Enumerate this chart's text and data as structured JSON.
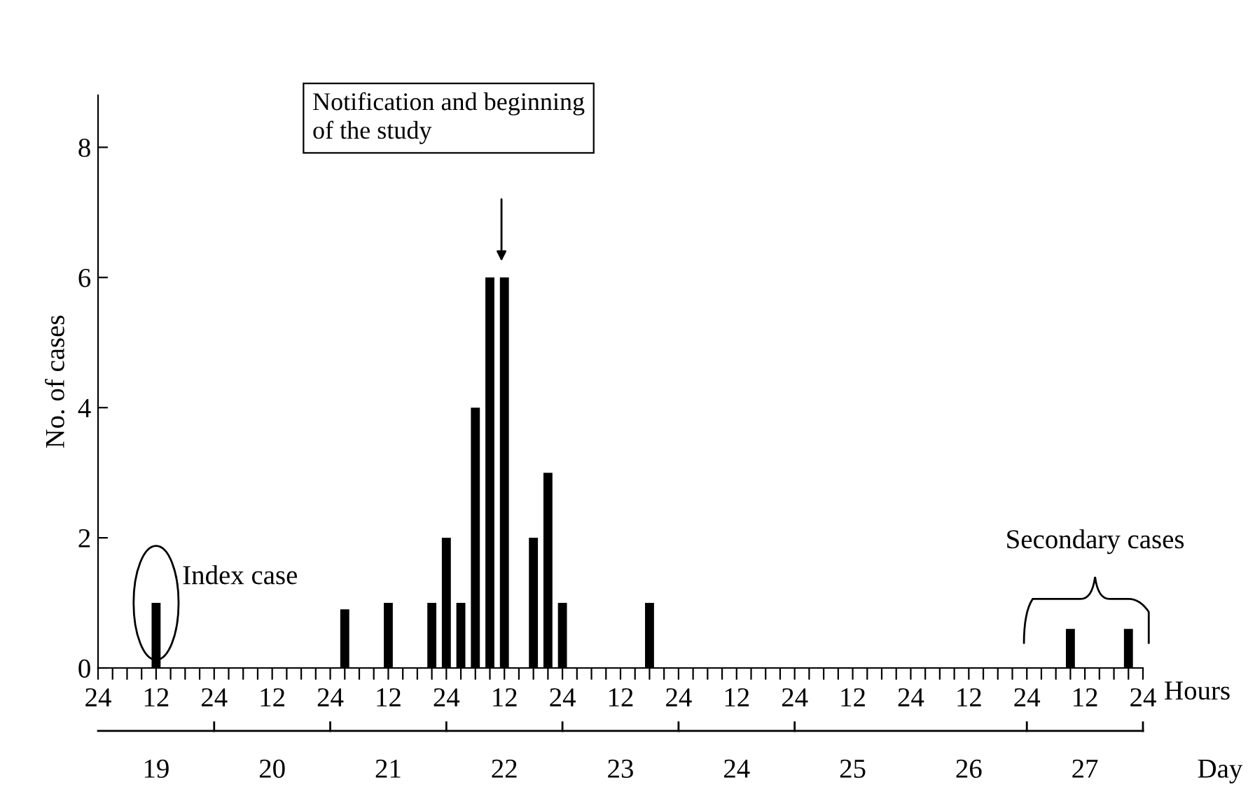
{
  "chart_data": {
    "type": "bar",
    "xlabel": "Hours",
    "ylabel": "No. of cases",
    "categories": [
      "24",
      null,
      null,
      null,
      "12",
      null,
      null,
      null,
      "24",
      null,
      null,
      null,
      "12",
      null,
      null,
      null,
      "24",
      null,
      null,
      null,
      "12",
      null,
      null,
      null,
      "24",
      null,
      null,
      null,
      "12",
      null,
      null,
      null,
      "24",
      null,
      null,
      null,
      "12",
      null,
      null,
      null,
      "24",
      null,
      null,
      null,
      "12",
      null,
      null,
      null,
      "24",
      null,
      null,
      null,
      "12",
      null,
      null,
      null,
      "24",
      null,
      null,
      null,
      "12",
      null,
      null,
      null,
      "24",
      null,
      null,
      null,
      "12",
      null,
      null,
      null,
      "24"
    ],
    "series": [
      {
        "color": "#000000",
        "values": [
          0,
          0,
          0,
          0,
          1,
          0,
          0,
          0,
          0,
          0,
          0,
          0,
          0,
          0,
          0,
          0,
          0,
          0.9,
          0,
          0,
          1,
          0,
          0,
          1,
          2,
          1,
          4,
          6,
          6,
          0,
          2,
          3,
          1,
          0,
          0,
          0,
          0,
          0,
          1,
          0,
          0,
          0,
          0,
          0,
          0,
          0,
          0,
          0,
          0,
          0,
          0,
          0,
          0,
          0,
          0,
          0,
          0,
          0,
          0,
          0,
          0,
          0,
          0,
          0,
          0,
          0,
          0,
          0.6,
          0,
          0,
          0,
          0.6,
          0
        ]
      }
    ],
    "ylim": [
      0,
      8.8
    ],
    "yticks": [
      0,
      2,
      4,
      6,
      8
    ],
    "annotations": [
      "Index case",
      "Notification and beginning\nof the study",
      "Secondary cases",
      "19",
      "20",
      "21",
      "22",
      "23",
      "24",
      "25",
      "26",
      "27",
      "Day"
    ],
    "grid": false
  }
}
